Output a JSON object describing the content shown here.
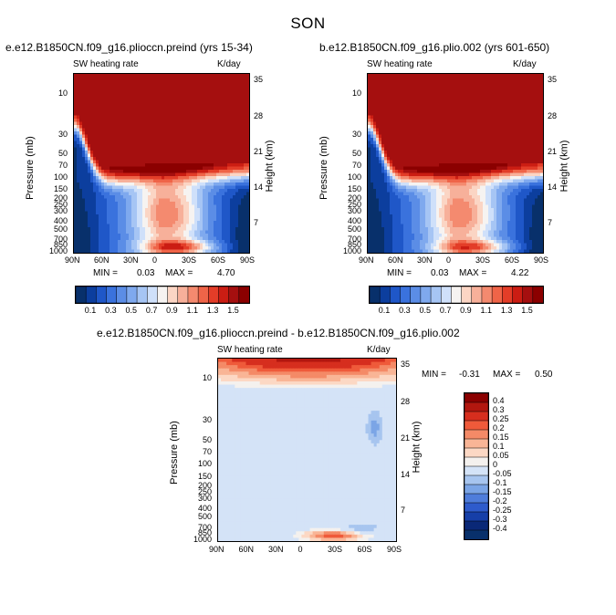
{
  "title": "SON",
  "chart_data": [
    {
      "type": "heatmap",
      "id": "left",
      "title": "e.e12.B1850CN.f09_g16.plioccn.preind (yrs 15-34)",
      "variable_label": "SW heating rate",
      "units": "K/day",
      "xlabel": "",
      "ylabel": "Pressure (mb)",
      "ylabel_right": "Height (km)",
      "x_ticks": [
        "90N",
        "60N",
        "30N",
        "0",
        "30S",
        "60S",
        "90S"
      ],
      "y_ticks": [
        "10",
        "30",
        "50",
        "70",
        "100",
        "150",
        "200",
        "250",
        "300",
        "400",
        "500",
        "700",
        "850",
        "1000"
      ],
      "y_ticks_right": [
        "35",
        "28",
        "21",
        "14",
        "7"
      ],
      "min_label": "MIN =",
      "min_value": "0.03",
      "max_label": "MAX =",
      "max_value": "4.70",
      "colorbar_levels": [
        "0.1",
        "0.3",
        "0.5",
        "0.7",
        "0.9",
        "1.1",
        "1.3",
        "1.5"
      ],
      "peak": 4.7
    },
    {
      "type": "heatmap",
      "id": "right",
      "title": "b.e12.B1850CN.f09_g16.plio.002 (yrs 601-650)",
      "variable_label": "SW heating rate",
      "units": "K/day",
      "xlabel": "",
      "ylabel": "Pressure (mb)",
      "ylabel_right": "Height (km)",
      "x_ticks": [
        "90N",
        "60N",
        "30N",
        "0",
        "30S",
        "60S",
        "90S"
      ],
      "y_ticks": [
        "10",
        "30",
        "50",
        "70",
        "100",
        "150",
        "200",
        "250",
        "300",
        "400",
        "500",
        "700",
        "850",
        "1000"
      ],
      "y_ticks_right": [
        "35",
        "28",
        "21",
        "14",
        "7"
      ],
      "min_label": "MIN =",
      "min_value": "0.03",
      "max_label": "MAX =",
      "max_value": "4.22",
      "colorbar_levels": [
        "0.1",
        "0.3",
        "0.5",
        "0.7",
        "0.9",
        "1.1",
        "1.3",
        "1.5"
      ],
      "peak": 4.22
    },
    {
      "type": "heatmap",
      "id": "diff",
      "title": "e.e12.B1850CN.f09_g16.plioccn.preind - b.e12.B1850CN.f09_g16.plio.002",
      "variable_label": "SW heating rate",
      "units": "K/day",
      "xlabel": "",
      "ylabel": "Pressure (mb)",
      "ylabel_right": "Height (km)",
      "x_ticks": [
        "90N",
        "60N",
        "30N",
        "0",
        "30S",
        "60S",
        "90S"
      ],
      "y_ticks": [
        "10",
        "30",
        "50",
        "70",
        "100",
        "150",
        "200",
        "250",
        "300",
        "400",
        "500",
        "700",
        "850",
        "1000"
      ],
      "y_ticks_right": [
        "35",
        "28",
        "21",
        "14",
        "7"
      ],
      "min_label": "MIN =",
      "min_value": "-0.31",
      "max_label": "MAX =",
      "max_value": "0.50",
      "colorbar_levels": [
        "0.4",
        "0.3",
        "0.25",
        "0.2",
        "0.15",
        "0.1",
        "0.05",
        "0",
        "-0.05",
        "-0.1",
        "-0.15",
        "-0.2",
        "-0.25",
        "-0.3",
        "-0.4"
      ]
    }
  ],
  "colors": {
    "seq": [
      "#08306b",
      "#0c3e9e",
      "#1f57c8",
      "#3a72dd",
      "#5b8de6",
      "#7fa9ee",
      "#a6c5f4",
      "#cfe0fa",
      "#f6f3f1",
      "#fbd5c4",
      "#f7b09a",
      "#f48a6f",
      "#ef6448",
      "#e33d28",
      "#cb1d13",
      "#a50f0f",
      "#8b0000"
    ],
    "div": [
      "#8b0000",
      "#b2170f",
      "#d62e1e",
      "#ef5a3a",
      "#f48a67",
      "#f9b596",
      "#fcd8c4",
      "#f4f1ee",
      "#d4e3f7",
      "#a7c5ef",
      "#7ba5e6",
      "#4f7ddb",
      "#2e5bcc",
      "#163fa8",
      "#0a2877",
      "#08306b"
    ]
  }
}
